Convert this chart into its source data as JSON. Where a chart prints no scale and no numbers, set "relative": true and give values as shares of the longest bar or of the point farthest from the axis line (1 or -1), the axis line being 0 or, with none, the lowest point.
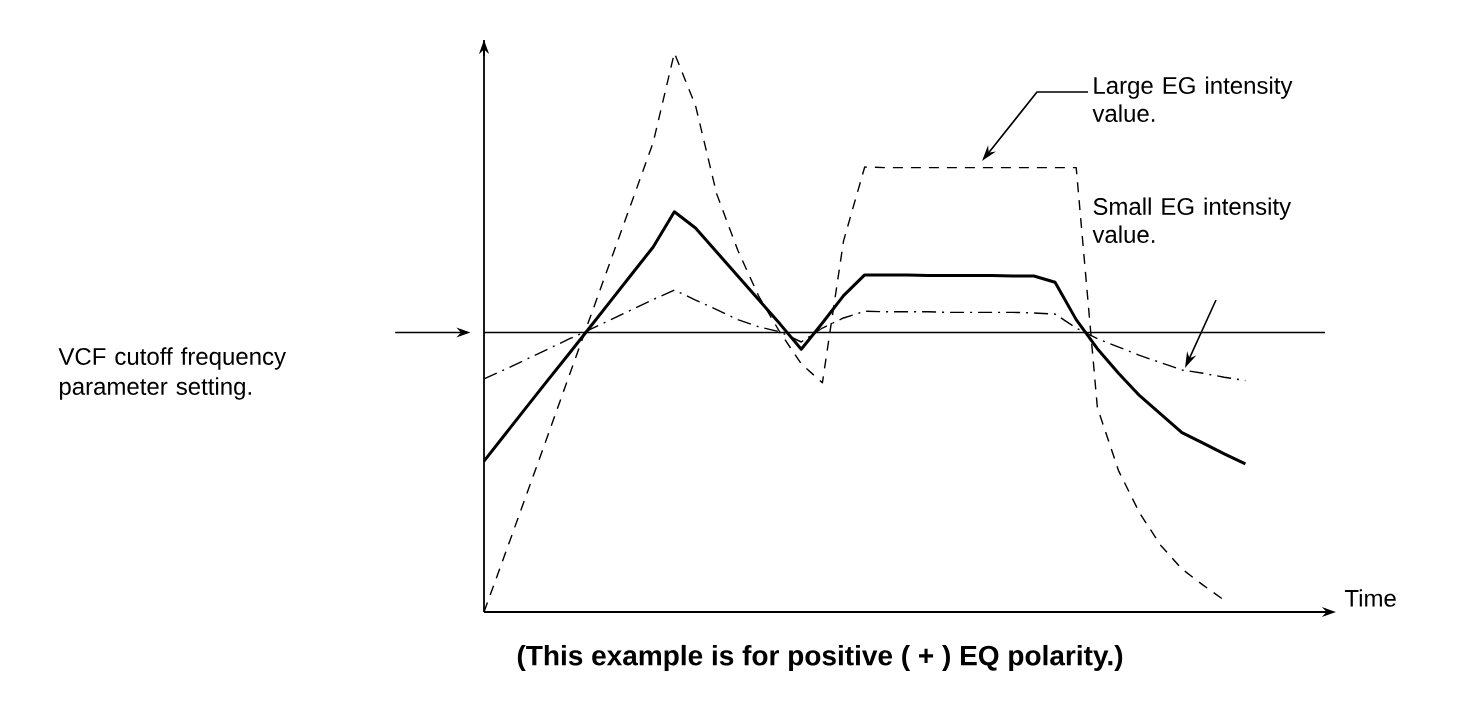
{
  "chart_data": {
    "type": "line",
    "relative": true,
    "xlabel": "Time",
    "categories": [
      null,
      null,
      null,
      null,
      null,
      null,
      null,
      null,
      null,
      null,
      null,
      null,
      null,
      null,
      null,
      null,
      null,
      null,
      null,
      null,
      null,
      null,
      null,
      null,
      null,
      null,
      null,
      null,
      null,
      null,
      null,
      null,
      null,
      null,
      null,
      null,
      null,
      null,
      null,
      null,
      null
    ],
    "series": [
      {
        "color": "#000000",
        "line_style": "solid",
        "values": [
          0.27,
          0.318,
          0.366,
          0.414,
          0.461,
          0.509,
          0.557,
          0.605,
          0.653,
          0.716,
          0.687,
          0.644,
          0.601,
          0.558,
          0.515,
          0.47,
          0.517,
          0.566,
          0.603,
          0.603,
          0.603,
          0.602,
          0.602,
          0.602,
          0.602,
          0.601,
          0.601,
          0.59,
          0.523,
          0.471,
          0.427,
          0.387,
          0.354,
          0.321,
          0.302,
          0.283,
          0.265,
          null,
          null,
          null,
          null
        ]
      },
      {
        "color": "#000000",
        "line_style": "dashed",
        "values": [
          0.0,
          0.104,
          0.209,
          0.314,
          0.42,
          0.525,
          0.63,
          0.735,
          0.84,
          1.0,
          0.906,
          0.748,
          0.647,
          0.564,
          0.5,
          0.444,
          0.41,
          0.664,
          0.796,
          0.795,
          0.795,
          0.795,
          0.795,
          0.795,
          0.795,
          0.795,
          0.795,
          0.795,
          0.795,
          0.366,
          0.253,
          0.177,
          0.119,
          0.077,
          0.048,
          0.021,
          null,
          null,
          null,
          null,
          null
        ]
      },
      {
        "color": "#000000",
        "line_style": "dashdot",
        "values": [
          0.417,
          0.434,
          0.452,
          0.47,
          0.488,
          0.505,
          0.523,
          0.541,
          0.559,
          0.576,
          0.558,
          0.541,
          0.523,
          0.51,
          0.501,
          0.483,
          0.508,
          0.526,
          0.538,
          0.537,
          0.537,
          0.537,
          0.536,
          0.536,
          0.536,
          0.536,
          0.535,
          0.533,
          0.508,
          0.489,
          0.474,
          0.459,
          0.446,
          0.433,
          0.427,
          0.42,
          0.414,
          null,
          null,
          null,
          null
        ]
      }
    ],
    "ref_lines": [
      {
        "axis": "y",
        "value": 0.5,
        "label": "VCF cutoff frequency parameter setting.",
        "color": "#000000",
        "line_style": "solid"
      }
    ],
    "annotations": [
      "Large EG intensity value.",
      "Small EG intensity value.",
      "(This example is for positive ( + ) EQ polarity.)"
    ]
  }
}
